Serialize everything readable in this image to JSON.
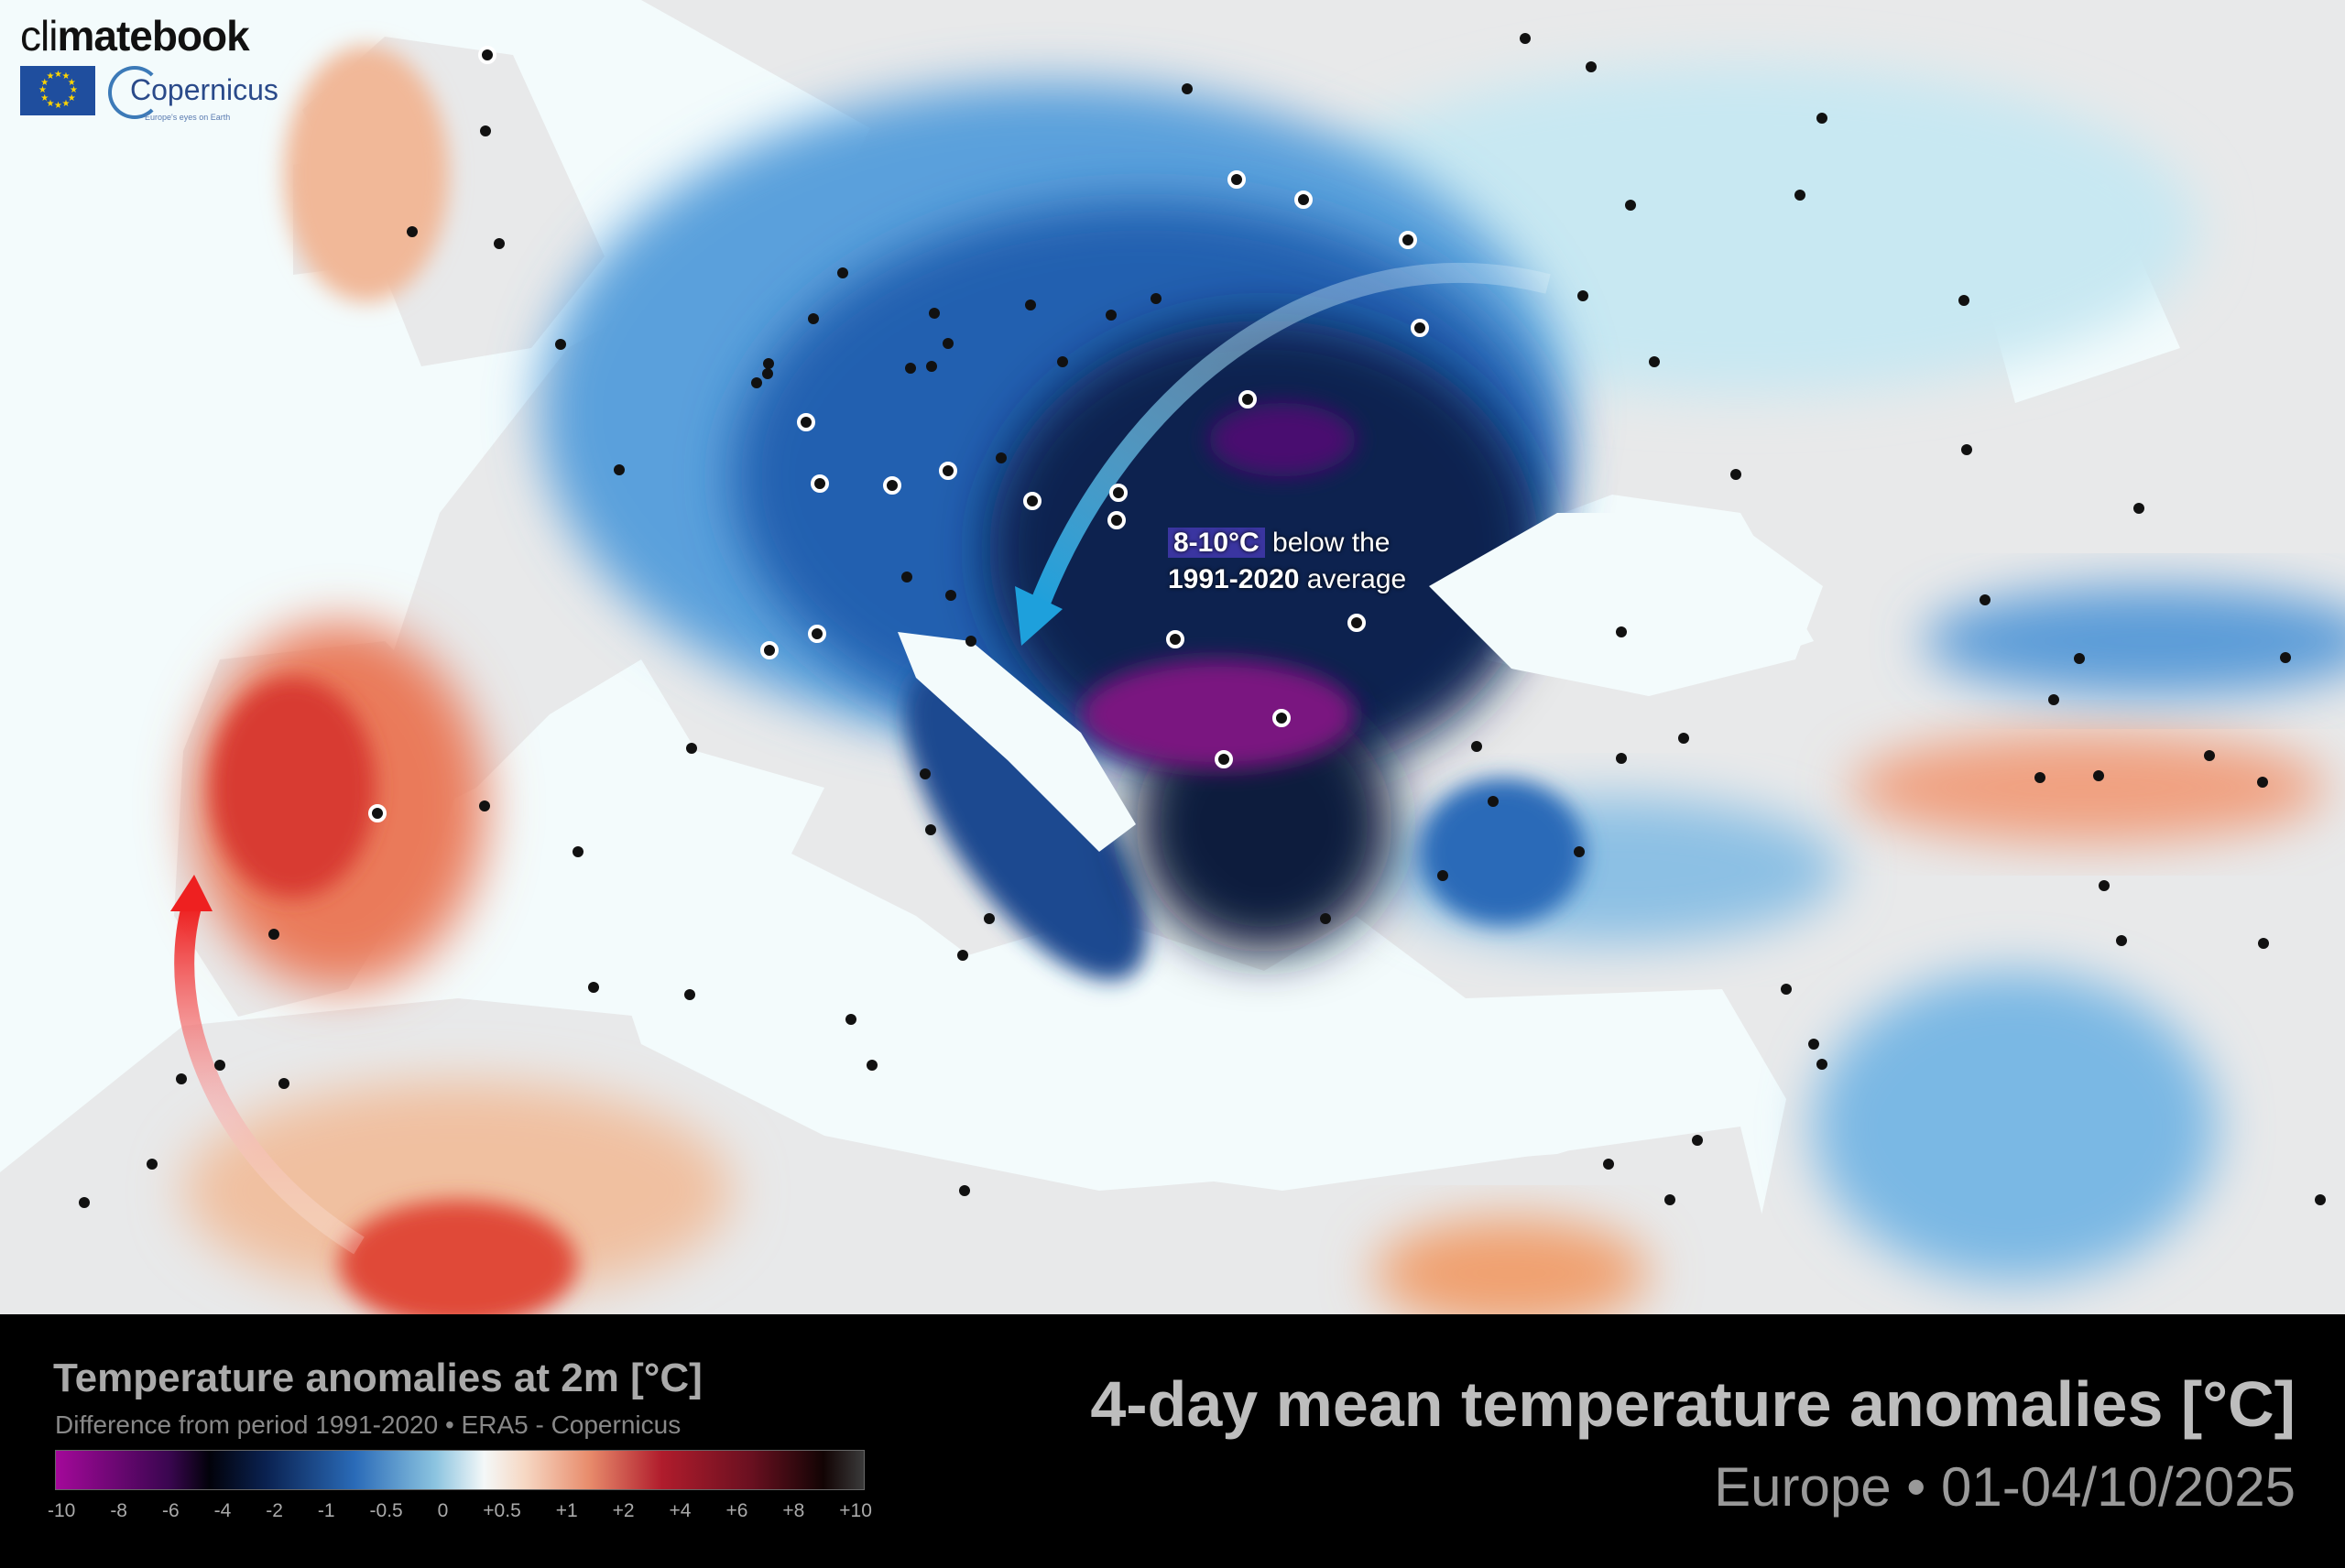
{
  "logo": {
    "brand_light": "cli",
    "brand_bold": "matebook",
    "partner": "Copernicus",
    "partner_tagline": "Europe's eyes on Earth",
    "eu_flag": "eu-flag-icon"
  },
  "annotation": {
    "highlight": "8-10°C",
    "text1": " below the",
    "bold2": "1991-2020",
    "text2": " average"
  },
  "legend": {
    "title": "Temperature anomalies at 2m [°C]",
    "subtitle": "Difference from period 1991-2020 • ERA5 - Copernicus",
    "ticks": [
      "-10",
      "-8",
      "-6",
      "-4",
      "-2",
      "-1",
      "-0.5",
      "0",
      "+0.5",
      "+1",
      "+2",
      "+4",
      "+6",
      "+8",
      "+10"
    ],
    "colors": [
      "#a4089a",
      "#02020a",
      "#2a6bb8",
      "#f4f8f8",
      "#e88c6c",
      "#b01c2c",
      "#120404"
    ]
  },
  "header": {
    "title": "4-day mean temperature anomalies [°C]",
    "subtitle": "Europe • 01-04/10/2025"
  },
  "arrows": {
    "cold_color": "#2aa6dc",
    "warm_color": "#e8282c"
  }
}
